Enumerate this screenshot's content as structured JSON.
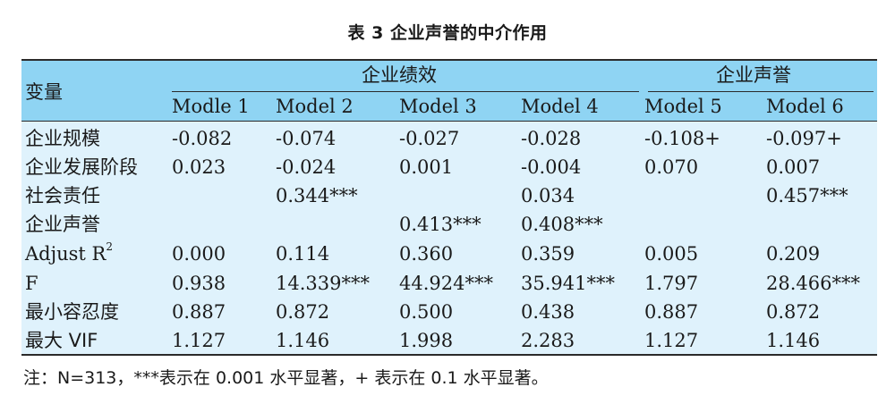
{
  "caption": "表 3  企业声誉的中介作用",
  "table": {
    "var_header": "变量",
    "groups": [
      "企业绩效",
      "企业声誉"
    ],
    "models": [
      "Modle 1",
      "Model 2",
      "Model 3",
      "Model 4",
      "Model 5",
      "Model 6"
    ],
    "rows": [
      {
        "label": "企业规模",
        "cells": [
          "-0.082",
          "-0.074",
          "-0.027",
          "-0.028",
          "-0.108+",
          "-0.097+"
        ]
      },
      {
        "label": "企业发展阶段",
        "cells": [
          "0.023",
          "-0.024",
          "0.001",
          "-0.004",
          "0.070",
          "0.007"
        ]
      },
      {
        "label": "社会责任",
        "cells": [
          "",
          "0.344***",
          "",
          "0.034",
          "",
          "0.457***"
        ]
      },
      {
        "label": "企业声誉",
        "cells": [
          "",
          "",
          "0.413***",
          "0.408***",
          "",
          ""
        ]
      },
      {
        "label": "Adjust R",
        "label_sup": "2",
        "cells": [
          "0.000",
          "0.114",
          "0.360",
          "0.359",
          "0.005",
          "0.209"
        ]
      },
      {
        "label": "F",
        "cells": [
          "0.938",
          "14.339***",
          "44.924***",
          "35.941***",
          "1.797",
          "28.466***"
        ]
      },
      {
        "label": "最小容忍度",
        "cells": [
          "0.887",
          "0.872",
          "0.500",
          "0.438",
          "0.887",
          "0.872"
        ]
      },
      {
        "label": "最大 VIF",
        "cells": [
          "1.127",
          "1.146",
          "1.998",
          "2.283",
          "1.127",
          "1.146"
        ]
      }
    ]
  },
  "note": "注：N=313，***表示在 0.001 水平显著，+ 表示在 0.1 水平显著。"
}
